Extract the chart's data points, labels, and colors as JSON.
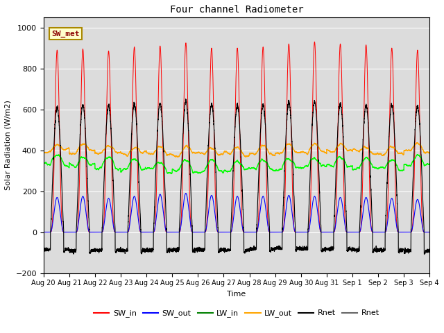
{
  "title": "Four channel Radiometer",
  "xlabel": "Time",
  "ylabel": "Solar Radiation (W/m2)",
  "ylim": [
    -200,
    1050
  ],
  "annotation": "SW_met",
  "background_color": "#e8e8e8",
  "x_tick_labels": [
    "Aug 20",
    "Aug 21",
    "Aug 22",
    "Aug 23",
    "Aug 24",
    "Aug 25",
    "Aug 26",
    "Aug 27",
    "Aug 28",
    "Aug 29",
    "Aug 30",
    "Aug 31",
    "Sep 1",
    "Sep 2",
    "Sep 3",
    "Sep 4"
  ],
  "legend_entries": [
    {
      "label": "SW_in",
      "color": "red",
      "ls": "-"
    },
    {
      "label": "SW_out",
      "color": "blue",
      "ls": "-"
    },
    {
      "label": "LW_in",
      "color": "green",
      "ls": "-"
    },
    {
      "label": "LW_out",
      "color": "orange",
      "ls": "-"
    },
    {
      "label": "Rnet",
      "color": "black",
      "ls": "-"
    },
    {
      "label": "Rnet",
      "color": "#666666",
      "ls": "-"
    }
  ],
  "num_days": 15,
  "points_per_day": 288,
  "sw_in_peaks": [
    890,
    895,
    885,
    905,
    910,
    925,
    900,
    900,
    905,
    920,
    930,
    920,
    915,
    900,
    890
  ],
  "sw_out_peaks": [
    170,
    175,
    165,
    175,
    185,
    190,
    180,
    175,
    175,
    180,
    175,
    170,
    170,
    165,
    160
  ],
  "lw_in_base": [
    330,
    325,
    315,
    308,
    300,
    300,
    300,
    302,
    308,
    312,
    318,
    322,
    313,
    308,
    328
  ],
  "lw_out_base": [
    395,
    393,
    388,
    382,
    382,
    380,
    380,
    380,
    384,
    390,
    392,
    396,
    387,
    382,
    396
  ],
  "rnet_peaks": [
    610,
    620,
    615,
    625,
    630,
    640,
    625,
    620,
    625,
    635,
    635,
    625,
    620,
    620,
    615
  ],
  "rnet_night": [
    -85,
    -90,
    -88,
    -90,
    -87,
    -85,
    -85,
    -88,
    -82,
    -78,
    -82,
    -82,
    -87,
    -87,
    -92
  ],
  "day_start": 0.27,
  "day_end": 0.79
}
